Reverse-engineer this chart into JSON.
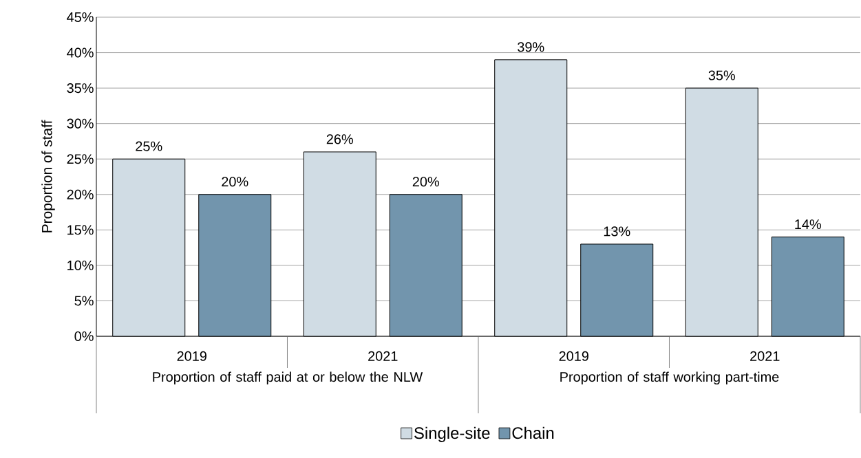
{
  "chart_data": {
    "type": "bar",
    "ylabel": "Proportion of staff",
    "categories": [
      "2019",
      "2021",
      "2019",
      "2021"
    ],
    "annotations": [
      "Proportion of staff paid at or below the NLW",
      "Proportion of staff working part-time"
    ],
    "series": [
      {
        "name": "Single-site",
        "color": "#d0dce4",
        "values": [
          25,
          26,
          39,
          35
        ],
        "value_labels": [
          "25%",
          "26%",
          "39%",
          "35%"
        ]
      },
      {
        "name": "Chain",
        "color": "#7295ad",
        "values": [
          20,
          20,
          13,
          14
        ],
        "value_labels": [
          "20%",
          "20%",
          "13%",
          "14%"
        ]
      }
    ],
    "ylim": [
      0,
      45
    ],
    "yticks": [
      {
        "value": 0,
        "label": "0%"
      },
      {
        "value": 5,
        "label": "5%"
      },
      {
        "value": 10,
        "label": "10%"
      },
      {
        "value": 15,
        "label": "15%"
      },
      {
        "value": 20,
        "label": "20%"
      },
      {
        "value": 25,
        "label": "25%"
      },
      {
        "value": 30,
        "label": "30%"
      },
      {
        "value": 35,
        "label": "35%"
      },
      {
        "value": 40,
        "label": "40%"
      },
      {
        "value": 45,
        "label": "45%"
      }
    ],
    "grid": "y",
    "legend": "bottom"
  }
}
